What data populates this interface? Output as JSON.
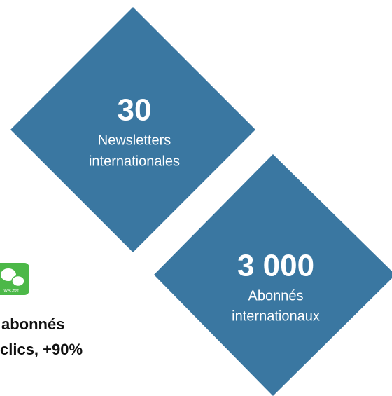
{
  "stats": [
    {
      "number": "30",
      "line1": "Newsletters",
      "line2": "internationales"
    },
    {
      "number": "3 000",
      "line1": "Abonnés",
      "line2": "internationaux"
    }
  ],
  "side": {
    "icon_label": "WeChat",
    "line1": "abonnés",
    "line2": "clics, +90%"
  }
}
